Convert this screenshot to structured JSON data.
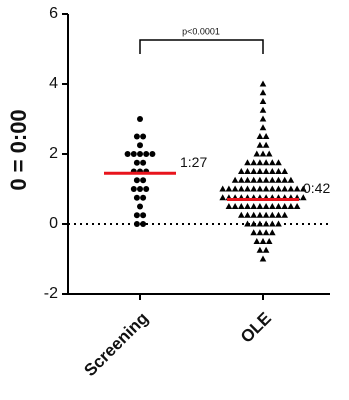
{
  "chart_data": {
    "type": "dot",
    "y_label": "0 = 0:00",
    "annotation": "p<0.0001",
    "categories": [
      "Screening",
      "OLE"
    ],
    "ylim": [
      -2,
      6
    ],
    "yticks": [
      -2,
      0,
      2,
      4,
      6
    ],
    "reference_line": 0,
    "mean_color": "#e8141c",
    "groups": [
      {
        "marker": "circle",
        "color": "#000000",
        "mean": 1.45,
        "mean_label": "1:27",
        "values": [
          3,
          2.5,
          2.5,
          2.25,
          2,
          2,
          2,
          2,
          2,
          1.75,
          1.75,
          1.5,
          1.5,
          1.5,
          1.25,
          1.25,
          1,
          1,
          1,
          0.75,
          0.75,
          0.5,
          0.25,
          0.25,
          0,
          0
        ]
      },
      {
        "marker": "triangle",
        "color": "#000000",
        "mean": 0.7,
        "mean_label": "0:42",
        "values": [
          4,
          3.75,
          3.5,
          3.25,
          3,
          2.75,
          2.5,
          2.5,
          2.25,
          2.25,
          2,
          2,
          2,
          1.75,
          1.75,
          1.75,
          1.75,
          1.75,
          1.75,
          1.5,
          1.5,
          1.5,
          1.5,
          1.5,
          1.5,
          1.5,
          1.5,
          1.25,
          1.25,
          1.25,
          1.25,
          1.25,
          1.25,
          1.25,
          1.25,
          1.25,
          1.25,
          1,
          1,
          1,
          1,
          1,
          1,
          1,
          1,
          1,
          1,
          1,
          1,
          1,
          1,
          0.75,
          0.75,
          0.75,
          0.75,
          0.75,
          0.75,
          0.75,
          0.75,
          0.75,
          0.75,
          0.75,
          0.75,
          0.75,
          0.75,
          0.5,
          0.5,
          0.5,
          0.5,
          0.5,
          0.5,
          0.5,
          0.5,
          0.5,
          0.5,
          0.5,
          0.5,
          0.25,
          0.25,
          0.25,
          0.25,
          0.25,
          0.25,
          0.25,
          0.25,
          0,
          0,
          0,
          0,
          0,
          0,
          -0.25,
          -0.25,
          -0.25,
          -0.25,
          -0.5,
          -0.5,
          -0.5,
          -0.75,
          -0.75,
          -1
        ]
      }
    ]
  }
}
